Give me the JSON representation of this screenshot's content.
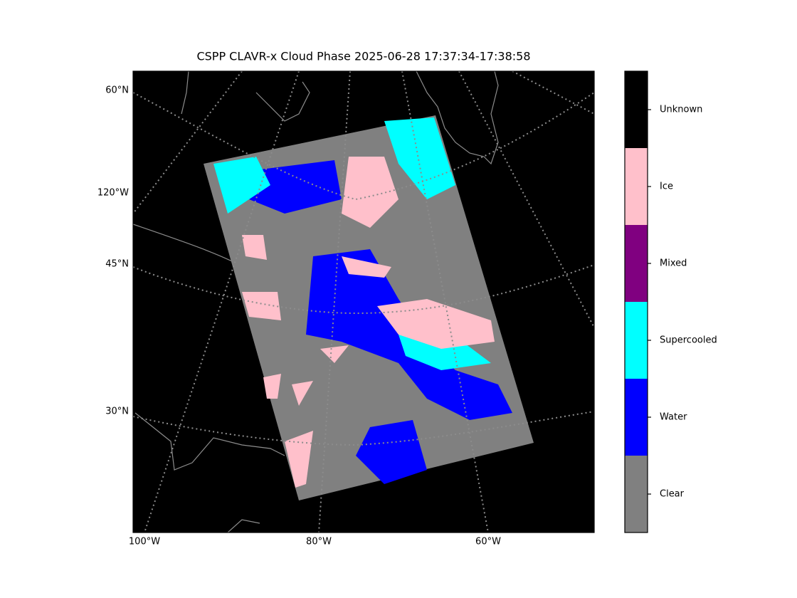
{
  "title": "CSPP CLAVR-x Cloud Phase 2025-06-28 17:37:34-17:38:58",
  "map": {
    "left_labels": [
      "60°N",
      "120°W",
      "45°N",
      "30°N"
    ],
    "bottom_labels": [
      "100°W",
      "80°W",
      "60°W"
    ]
  },
  "colorbar": {
    "classes": [
      {
        "name": "Unknown",
        "color": "#000000"
      },
      {
        "name": "Ice",
        "color": "#ffc0cb"
      },
      {
        "name": "Mixed",
        "color": "#800080"
      },
      {
        "name": "Supercooled",
        "color": "#00ffff"
      },
      {
        "name": "Water",
        "color": "#0000ff"
      },
      {
        "name": "Clear",
        "color": "#808080"
      }
    ]
  }
}
